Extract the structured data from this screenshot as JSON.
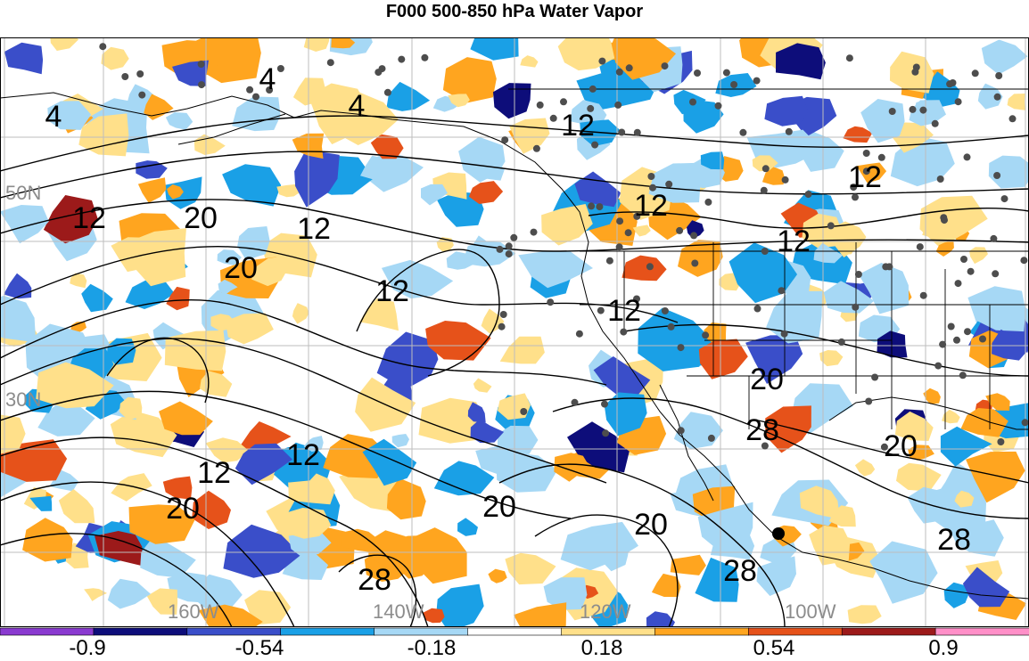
{
  "title": "F000 500-850 hPa Water Vapor",
  "map": {
    "lat_labels": [
      "50N",
      "30N"
    ],
    "lon_labels": [
      "160W",
      "140W",
      "120W",
      "100W"
    ],
    "contour_labels": [
      "4",
      "4",
      "4",
      "12",
      "12",
      "12",
      "12",
      "12",
      "12",
      "12",
      "12",
      "12",
      "12",
      "20",
      "20",
      "20",
      "20",
      "20",
      "20",
      "20",
      "28",
      "28",
      "28",
      "28"
    ],
    "anomaly_colors": {
      "negative": [
        "#8a3ad0",
        "#0d0d7a",
        "#3a4ec9",
        "#1aa0e6",
        "#a6d8f5"
      ],
      "neutral": "#ffffff",
      "positive": [
        "#ffe08a",
        "#ffa51f",
        "#e6521a",
        "#9c1a1a",
        "#ff8fc8"
      ]
    },
    "features": {
      "coastlines": true,
      "state_borders": true,
      "graticule": true,
      "station_dots": true
    }
  },
  "colorbar": {
    "colors": [
      "#8a3ad0",
      "#0d0d7a",
      "#3a4ec9",
      "#1aa0e6",
      "#a6d8f5",
      "#ffffff",
      "#ffe08a",
      "#ffa51f",
      "#e6521a",
      "#9c1a1a",
      "#ff8fc8"
    ],
    "tick_labels": [
      "-0.9",
      "-0.54",
      "-0.18",
      "0.18",
      "0.54",
      "0.9"
    ]
  }
}
